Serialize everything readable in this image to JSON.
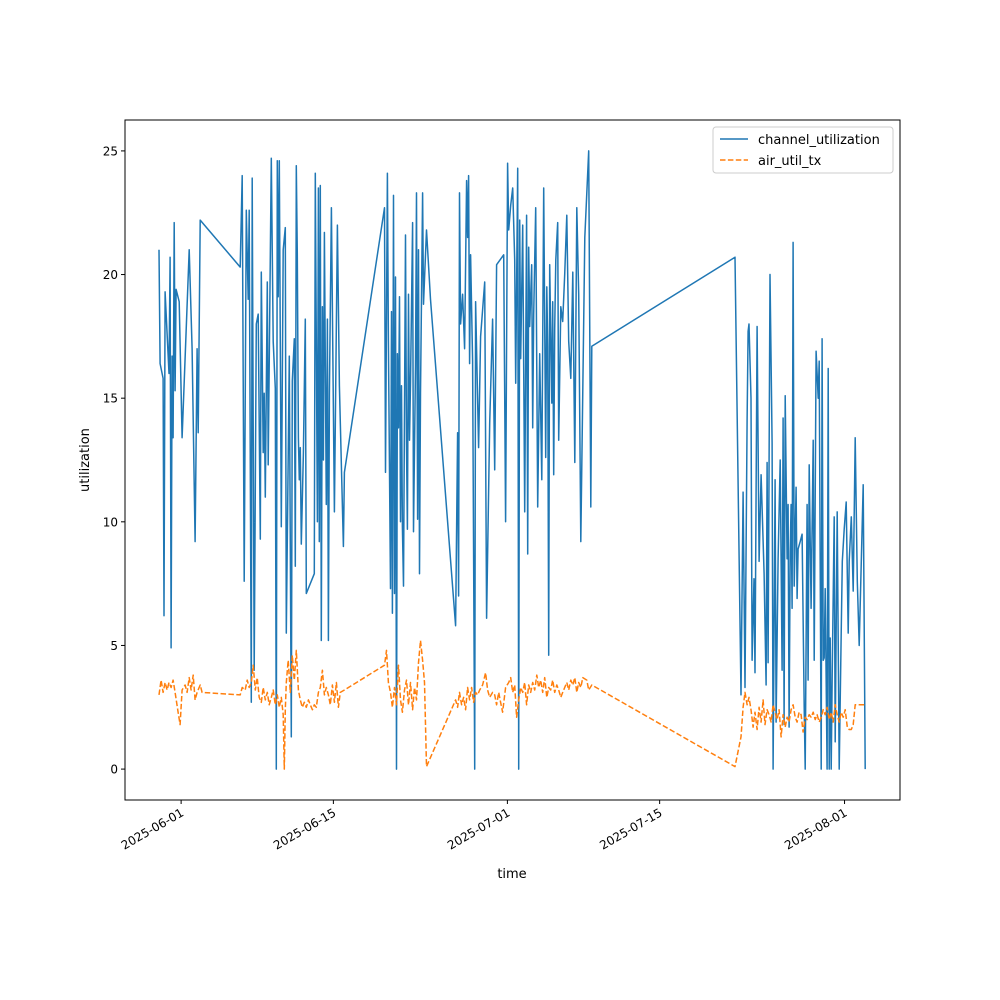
{
  "chart_data": {
    "type": "line",
    "title": "",
    "xlabel": "time",
    "ylabel": "utilization",
    "x_unit": "days since 2025-06-01",
    "xlim": [
      -5.16,
      66.1
    ],
    "ylim": [
      -1.25,
      26.25
    ],
    "grid": false,
    "legend_placement": "top-right",
    "x_ticks": [
      {
        "value": 0,
        "label": "2025-06-01"
      },
      {
        "value": 14,
        "label": "2025-06-15"
      },
      {
        "value": 30,
        "label": "2025-07-01"
      },
      {
        "value": 44,
        "label": "2025-07-15"
      },
      {
        "value": 61,
        "label": "2025-08-01"
      }
    ],
    "y_ticks": [
      {
        "value": 0,
        "label": "0"
      },
      {
        "value": 5,
        "label": "5"
      },
      {
        "value": 10,
        "label": "10"
      },
      {
        "value": 15,
        "label": "15"
      },
      {
        "value": 20,
        "label": "20"
      },
      {
        "value": 25,
        "label": "25"
      }
    ],
    "series": [
      {
        "name": "channel_utilization",
        "color": "#1f77b4",
        "style": "solid",
        "x": [
          -2.03,
          -1.93,
          -1.66,
          -1.57,
          -1.47,
          -1.11,
          -1.01,
          -0.92,
          -0.83,
          -0.74,
          -0.64,
          -0.55,
          -0.46,
          -0.18,
          0.09,
          0.74,
          1.01,
          1.29,
          1.47,
          1.57,
          1.75,
          5.43,
          5.62,
          5.8,
          5.99,
          6.17,
          6.26,
          6.45,
          6.54,
          6.72,
          6.91,
          7.09,
          7.28,
          7.37,
          7.55,
          7.64,
          7.74,
          7.92,
          8.01,
          8.29,
          8.47,
          8.66,
          8.75,
          8.84,
          8.93,
          9.03,
          9.21,
          9.39,
          9.58,
          9.67,
          9.95,
          10.13,
          10.22,
          10.41,
          10.5,
          10.59,
          10.68,
          10.78,
          10.87,
          10.96,
          11.05,
          11.24,
          11.42,
          11.51,
          12.25,
          12.34,
          12.53,
          12.62,
          12.71,
          12.8,
          12.89,
          12.99,
          13.08,
          13.17,
          13.35,
          13.45,
          13.54,
          13.63,
          13.82,
          14.09,
          14.37,
          14.55,
          14.92,
          15.01,
          18.7,
          18.79,
          18.97,
          19.06,
          19.25,
          19.34,
          19.43,
          19.53,
          19.62,
          19.71,
          19.8,
          19.89,
          19.99,
          20.08,
          20.17,
          20.26,
          20.35,
          20.45,
          20.63,
          20.72,
          20.81,
          20.91,
          21,
          21.09,
          21.28,
          21.37,
          21.55,
          21.64,
          21.74,
          21.83,
          21.92,
          22.01,
          22.2,
          22.29,
          22.56,
          22.93,
          25.24,
          25.42,
          25.51,
          25.6,
          25.7,
          25.88,
          26.07,
          26.25,
          26.34,
          26.43,
          26.53,
          26.62,
          26.8,
          26.99,
          27.08,
          27.35,
          27.54,
          27.91,
          28.09,
          28.37,
          28.64,
          28.83,
          29.01,
          29.66,
          29.84,
          30.02,
          30.12,
          30.3,
          30.49,
          30.67,
          30.76,
          30.95,
          31.04,
          31.13,
          31.22,
          31.41,
          31.59,
          31.77,
          31.87,
          31.96,
          32.05,
          32.24,
          32.33,
          32.42,
          32.6,
          32.79,
          32.97,
          33.16,
          33.34,
          33.52,
          33.62,
          33.71,
          33.8,
          33.89,
          34.08,
          34.17,
          34.26,
          34.35,
          34.45,
          34.63,
          34.72,
          34.91,
          35.09,
          35.27,
          35.46,
          35.64,
          35.83,
          36.01,
          36.2,
          36.38,
          36.56,
          36.75,
          37.12,
          37.48,
          37.67,
          37.76,
          50.93,
          51.48,
          51.67,
          51.85,
          52.04,
          52.13,
          52.22,
          52.4,
          52.5,
          52.68,
          52.77,
          52.96,
          53.14,
          53.33,
          53.6,
          53.79,
          53.88,
          53.97,
          54.15,
          54.34,
          54.43,
          54.62,
          54.71,
          54.89,
          55.08,
          55.26,
          55.35,
          55.44,
          55.54,
          55.72,
          55.81,
          55.9,
          56,
          56.09,
          56.18,
          56.27,
          56.37,
          56.55,
          56.64,
          56.73,
          56.92,
          57.1,
          57.29,
          57.38,
          57.56,
          57.65,
          57.75,
          57.93,
          58.12,
          58.21,
          58.39,
          58.58,
          58.67,
          58.85,
          58.94,
          59.04,
          59.13,
          59.22,
          59.4,
          59.5,
          59.59,
          59.68,
          59.77,
          59.87,
          60.05,
          60.14,
          60.33,
          60.51,
          60.69,
          60.79,
          60.97,
          61.15,
          61.34,
          61.43,
          61.62,
          61.8,
          61.98,
          62.17,
          62.35,
          62.72,
          62.9
        ],
        "y": [
          21,
          16.4,
          15.8,
          6.2,
          19.3,
          16,
          20.7,
          4.9,
          16.7,
          13.4,
          22.1,
          15.3,
          19.4,
          18.9,
          13.4,
          21,
          17,
          9.2,
          17,
          13.6,
          22.2,
          20.3,
          24,
          7.6,
          22.6,
          19,
          22.6,
          2.7,
          23.9,
          4,
          18,
          18.4,
          9.3,
          20.1,
          12.8,
          15.2,
          11,
          19.7,
          12.3,
          24.7,
          17.3,
          15.4,
          0,
          24.6,
          19.1,
          24.6,
          9.8,
          21,
          21.9,
          5.5,
          16.7,
          1.3,
          15.7,
          17.4,
          8.2,
          24.4,
          20.8,
          13.4,
          11.7,
          13,
          9.1,
          12.8,
          18.2,
          7.1,
          7.9,
          24.1,
          10,
          23.5,
          9.2,
          23.6,
          5.2,
          18.7,
          12.5,
          21.7,
          10.7,
          18.2,
          5.2,
          15.2,
          22.7,
          10.4,
          22,
          15.5,
          9,
          12,
          22.7,
          12,
          24.1,
          17.3,
          7.3,
          18.5,
          6.3,
          23.2,
          7.1,
          19.9,
          0,
          16.8,
          13.8,
          19.1,
          10,
          15.5,
          9.8,
          7.4,
          21.6,
          13.1,
          9.7,
          19.2,
          13.3,
          15.6,
          22.1,
          9.6,
          16.3,
          23.3,
          10.1,
          21,
          7.9,
          15.2,
          23.3,
          18.8,
          21.8,
          19,
          5.8,
          13.6,
          7,
          23.3,
          18,
          19.2,
          17,
          23.8,
          21.5,
          24,
          16.4,
          20.8,
          16.5,
          0,
          18.9,
          13,
          17.5,
          19.7,
          6.1,
          14,
          18.2,
          12.1,
          20.4,
          20.8,
          10,
          24.5,
          21.8,
          22.8,
          23.5,
          20.6,
          15.6,
          24.3,
          0,
          22.2,
          16.6,
          22,
          10.4,
          22.4,
          8.7,
          21.1,
          17.9,
          20.4,
          13.8,
          18.4,
          22.7,
          10.6,
          16.8,
          11.7,
          23.5,
          12.6,
          19.5,
          17.1,
          4.6,
          20.4,
          14.8,
          18.9,
          11.9,
          17.8,
          20.6,
          22.1,
          13.3,
          18.7,
          18.1,
          20,
          22.4,
          17.3,
          15.8,
          20.1,
          12.4,
          22.7,
          19.2,
          9.2,
          21.5,
          25,
          10.6,
          17.1,
          20.7,
          3,
          11.2,
          3.3,
          14.1,
          17.7,
          18,
          15,
          4.4,
          7.7,
          3.9,
          17.9,
          8.4,
          11.9,
          7.9,
          3.4,
          12.4,
          4.3,
          20,
          13.2,
          0,
          11.7,
          1.9,
          8.5,
          12.5,
          4,
          14.2,
          1.8,
          15.1,
          8.5,
          10.7,
          1.7,
          8.8,
          10.7,
          6.5,
          21.3,
          7.4,
          11.4,
          6.9,
          8.9,
          9.2,
          9.5,
          2.5,
          0,
          10.7,
          3.6,
          12.3,
          6.5,
          13.3,
          4.4,
          16.9,
          15,
          16.5,
          0,
          17.4,
          4.4,
          4.5,
          7.3,
          0,
          16.2,
          0,
          5.3,
          0,
          3.8,
          10.2,
          1.1,
          10.4,
          0,
          5.5,
          8.4,
          9.7,
          10.8,
          5.5,
          8.4,
          10.2,
          7.2,
          13.4,
          7.6,
          5,
          11.5,
          0
        ]
      },
      {
        "name": "air_util_tx",
        "color": "#ff7f0e",
        "style": "dashed",
        "x": [
          -2.03,
          -1.84,
          -1.66,
          -1.47,
          -1.29,
          -1.11,
          -0.92,
          -0.74,
          -0.55,
          -0.28,
          -0.09,
          0.09,
          0.37,
          0.55,
          0.74,
          0.92,
          1.11,
          1.29,
          1.47,
          1.75,
          1.93,
          5.43,
          5.62,
          5.89,
          6.08,
          6.26,
          6.45,
          6.63,
          6.82,
          7,
          7.18,
          7.37,
          7.55,
          7.74,
          7.92,
          8.1,
          8.29,
          8.47,
          8.66,
          8.84,
          9.03,
          9.21,
          9.39,
          9.49,
          9.58,
          9.67,
          9.85,
          10.04,
          10.22,
          10.41,
          10.59,
          10.78,
          10.96,
          11.14,
          11.33,
          11.51,
          11.7,
          11.88,
          12.07,
          12.25,
          12.43,
          12.62,
          12.8,
          12.99,
          13.17,
          13.35,
          13.54,
          13.72,
          13.91,
          14.09,
          14.28,
          14.46,
          14.64,
          15.01,
          18.7,
          18.88,
          19.06,
          19.25,
          19.43,
          19.62,
          19.8,
          19.99,
          20.17,
          20.35,
          20.54,
          20.72,
          20.91,
          21.09,
          21.28,
          21.46,
          21.64,
          21.83,
          22.01,
          22.2,
          22.38,
          22.56,
          25.24,
          25.42,
          25.6,
          25.79,
          25.97,
          26.16,
          26.34,
          26.53,
          26.71,
          26.89,
          27.08,
          27.26,
          27.45,
          27.72,
          28,
          28.18,
          28.37,
          28.64,
          28.83,
          29.01,
          29.2,
          29.38,
          29.56,
          29.84,
          30.12,
          30.3,
          30.49,
          30.67,
          30.85,
          31.04,
          31.22,
          31.41,
          31.59,
          31.77,
          31.96,
          32.14,
          32.33,
          32.51,
          32.7,
          32.88,
          33.06,
          33.25,
          33.43,
          33.62,
          33.8,
          33.98,
          34.17,
          34.35,
          34.54,
          34.72,
          34.91,
          35.09,
          35.27,
          35.46,
          35.64,
          35.83,
          36.01,
          36.2,
          36.38,
          36.56,
          36.75,
          36.93,
          37.3,
          37.48,
          37.76,
          50.93,
          51.48,
          51.67,
          51.85,
          52.04,
          52.22,
          52.4,
          52.59,
          52.77,
          52.96,
          53.14,
          53.33,
          53.51,
          53.69,
          53.88,
          54.06,
          54.25,
          54.43,
          54.62,
          54.8,
          54.98,
          55.17,
          55.35,
          55.54,
          55.72,
          55.9,
          56.09,
          56.27,
          56.46,
          56.64,
          56.82,
          57.01,
          57.19,
          57.38,
          57.56,
          57.75,
          57.93,
          58.12,
          58.3,
          58.48,
          58.67,
          58.85,
          59.04,
          59.22,
          59.4,
          59.59,
          59.77,
          59.96,
          60.14,
          60.33,
          60.51,
          60.69,
          60.88,
          61.06,
          61.25,
          61.43,
          61.62,
          61.8,
          61.98,
          62.35,
          62.9
        ],
        "y": [
          3,
          3.6,
          3.1,
          3.5,
          3.2,
          3.5,
          3.3,
          3.6,
          3.1,
          2.3,
          1.8,
          3.2,
          3.4,
          3.1,
          3.7,
          3.2,
          3.8,
          2.8,
          3.1,
          3.4,
          3.1,
          3,
          3.3,
          3.2,
          3.6,
          3.3,
          3.5,
          4.2,
          3.2,
          3.7,
          2.9,
          2.7,
          3.3,
          2.8,
          3.1,
          2.6,
          2.9,
          3.2,
          2.6,
          3,
          2.5,
          2.9,
          2.2,
          0,
          2.4,
          3.5,
          4.4,
          3.1,
          4.6,
          3.6,
          4.8,
          3.2,
          2.8,
          2.5,
          2.7,
          2.5,
          2.8,
          2.6,
          2.4,
          2.6,
          2.5,
          3.1,
          3.3,
          4,
          3,
          3.3,
          3,
          2.6,
          3.4,
          2.7,
          3.5,
          2.5,
          3.1,
          3.2,
          4.2,
          4.8,
          3.5,
          3.1,
          2.5,
          3.3,
          2.6,
          4.2,
          2.8,
          2.3,
          3.2,
          3.6,
          2.6,
          3.5,
          2.4,
          3.3,
          2.8,
          4.3,
          5.2,
          4.4,
          3.5,
          0.1,
          2.8,
          2.5,
          3.1,
          2.6,
          2.9,
          2.4,
          3.3,
          2.8,
          3.3,
          2.7,
          3.1,
          3,
          3.2,
          3.4,
          3.9,
          3.2,
          2.9,
          3.1,
          3,
          2.6,
          3.1,
          2.7,
          2.3,
          3.3,
          3.5,
          3.7,
          3.1,
          3.4,
          2.1,
          2.8,
          3.3,
          3.1,
          3.5,
          2.6,
          3.4,
          3.1,
          3.5,
          3.2,
          3.8,
          3.3,
          3.6,
          3.1,
          3.7,
          2.9,
          3.3,
          3.2,
          3.6,
          3.1,
          3.4,
          3.2,
          2.9,
          3.1,
          3.3,
          3.5,
          3.2,
          3.6,
          3.4,
          3.7,
          3.1,
          3.5,
          3.3,
          3.7,
          3.6,
          3.2,
          3.4,
          0.1,
          1.3,
          2.5,
          3.1,
          2.6,
          2.9,
          2.4,
          1.7,
          2.3,
          1.6,
          2.5,
          1.9,
          2.8,
          1.8,
          2.4,
          2.2,
          1.9,
          2.6,
          2.3,
          2,
          2.4,
          1.3,
          2.2,
          1.7,
          2.1,
          1.9,
          2.4,
          2.6,
          2.1,
          1.9,
          2.3,
          2.2,
          1.5,
          2.1,
          2,
          2.2,
          2.1,
          2.3,
          2,
          2.2,
          1.9,
          2.1,
          2.4,
          2.2,
          2.5,
          2,
          2.3,
          1.9,
          2.6,
          2.2,
          1.9,
          2.3,
          2.1,
          2.4,
          1.7,
          1.6,
          1.6,
          1.8,
          2.6,
          2.6,
          2.6
        ]
      }
    ]
  }
}
